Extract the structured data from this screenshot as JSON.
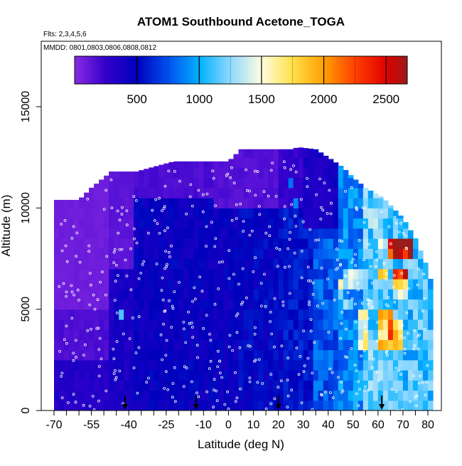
{
  "chart_data": {
    "type": "heatmap",
    "title": "ATOM1 Southbound Acetone_TOGA",
    "subtitle_flights": "Flts: 2,3,4,5,6",
    "subtitle_dates": "MMDD: 0801,0803,0806,0808,0812",
    "xlabel": "Latitude (deg N)",
    "ylabel": "Altitude (m)",
    "xlim": [
      -70,
      82
    ],
    "ylim": [
      0,
      17500
    ],
    "x_ticks": [
      -70,
      -55,
      -40,
      -25,
      -10,
      0,
      10,
      20,
      30,
      40,
      50,
      60,
      70,
      80
    ],
    "x_ticklabels": [
      "-70",
      "-55",
      "-40",
      "-25",
      "-10",
      "0",
      "10",
      "20",
      "30",
      "40",
      "50",
      "60",
      "70",
      "80"
    ],
    "x_minor_step": 5,
    "y_ticks": [
      0,
      5000,
      10000,
      15000
    ],
    "y_ticklabels": [
      "0",
      "5000",
      "10000",
      "15000"
    ],
    "colorbar": {
      "range": [
        0,
        2670
      ],
      "ticks": [
        500,
        1000,
        1500,
        2000,
        2500
      ],
      "ticklabels": [
        "500",
        "1000",
        "1500",
        "2000",
        "2500"
      ],
      "stops": [
        {
          "value": 0,
          "color": "#8a2be2"
        },
        {
          "value": 250,
          "color": "#3300cc"
        },
        {
          "value": 500,
          "color": "#0000bb"
        },
        {
          "value": 750,
          "color": "#0050ee"
        },
        {
          "value": 1000,
          "color": "#00b0ff"
        },
        {
          "value": 1250,
          "color": "#8fd8ff"
        },
        {
          "value": 1500,
          "color": "#fffde0"
        },
        {
          "value": 1750,
          "color": "#ffe04a"
        },
        {
          "value": 2000,
          "color": "#ffa000"
        },
        {
          "value": 2250,
          "color": "#ff4000"
        },
        {
          "value": 2500,
          "color": "#e00000"
        },
        {
          "value": 2670,
          "color": "#9b1a1a"
        }
      ]
    },
    "flight_markers_lat": [
      -41.5,
      -13,
      20,
      61.5
    ],
    "altitude_ceiling_profile": [
      [
        -70,
        10400
      ],
      [
        -60,
        10400
      ],
      [
        -55,
        11000
      ],
      [
        -47,
        11800
      ],
      [
        -37,
        11800
      ],
      [
        -22,
        12300
      ],
      [
        -12,
        12300
      ],
      [
        0,
        12300
      ],
      [
        5,
        12900
      ],
      [
        15,
        12900
      ],
      [
        25,
        12900
      ],
      [
        28,
        13000
      ],
      [
        35,
        12900
      ],
      [
        40,
        12500
      ],
      [
        46,
        12000
      ],
      [
        50,
        11500
      ],
      [
        55,
        11000
      ],
      [
        62,
        10500
      ],
      [
        70,
        9500
      ],
      [
        75,
        8500
      ],
      [
        80,
        7000
      ],
      [
        82,
        6000
      ]
    ],
    "regions": [
      {
        "lat": [
          -70,
          -48
        ],
        "alt": [
          5000,
          13000
        ],
        "value": 80
      },
      {
        "lat": [
          -70,
          -48
        ],
        "alt": [
          2500,
          5000
        ],
        "value": 170
      },
      {
        "lat": [
          -70,
          -48
        ],
        "alt": [
          0,
          2500
        ],
        "value": 330
      },
      {
        "lat": [
          -48,
          -37
        ],
        "alt": [
          7000,
          13000
        ],
        "value": 130
      },
      {
        "lat": [
          -48,
          -37
        ],
        "alt": [
          0,
          7000
        ],
        "value": 380
      },
      {
        "lat": [
          -37,
          -5
        ],
        "alt": [
          10500,
          13000
        ],
        "value": 180
      },
      {
        "lat": [
          -37,
          5
        ],
        "alt": [
          0,
          10500
        ],
        "value": 460
      },
      {
        "lat": [
          -5,
          20
        ],
        "alt": [
          10000,
          13500
        ],
        "value": 160
      },
      {
        "lat": [
          5,
          22
        ],
        "alt": [
          0,
          10000
        ],
        "value": 500
      },
      {
        "lat": [
          20,
          30
        ],
        "alt": [
          10000,
          13500
        ],
        "value": 260
      },
      {
        "lat": [
          22,
          35
        ],
        "alt": [
          0,
          10000
        ],
        "value": 560
      },
      {
        "lat": [
          30,
          42
        ],
        "alt": [
          9000,
          13500
        ],
        "value": 360
      },
      {
        "lat": [
          35,
          45
        ],
        "alt": [
          0,
          9000
        ],
        "value": 760
      },
      {
        "lat": [
          45,
          55
        ],
        "alt": [
          0,
          12500
        ],
        "value": 900
      },
      {
        "lat": [
          55,
          65
        ],
        "alt": [
          0,
          12000
        ],
        "value": 1150
      },
      {
        "lat": [
          65,
          82
        ],
        "alt": [
          0,
          11000
        ],
        "value": 1100
      },
      {
        "lat": [
          -44,
          -42
        ],
        "alt": [
          4400,
          5000
        ],
        "value": 1000
      },
      {
        "lat": [
          26,
          29
        ],
        "alt": [
          10000,
          10400
        ],
        "value": 850
      },
      {
        "lat": [
          24.5,
          26
        ],
        "alt": [
          11000,
          11600
        ],
        "value": 1000
      },
      {
        "lat": [
          47,
          55
        ],
        "alt": [
          6000,
          7000
        ],
        "value": 1400
      },
      {
        "lat": [
          52,
          56
        ],
        "alt": [
          2800,
          5200
        ],
        "value": 1500
      },
      {
        "lat": [
          60,
          64
        ],
        "alt": [
          3000,
          5000
        ],
        "value": 1800
      },
      {
        "lat": [
          64,
          67
        ],
        "alt": [
          3000,
          4800
        ],
        "value": 2100
      },
      {
        "lat": [
          67,
          70
        ],
        "alt": [
          3100,
          4700
        ],
        "value": 1700
      },
      {
        "lat": [
          60,
          64
        ],
        "alt": [
          7700,
          8400
        ],
        "value": 1300
      },
      {
        "lat": [
          64,
          68
        ],
        "alt": [
          7700,
          8400
        ],
        "value": 2450
      },
      {
        "lat": [
          68,
          74
        ],
        "alt": [
          7700,
          8400
        ],
        "value": 2600
      },
      {
        "lat": [
          66,
          70
        ],
        "alt": [
          6500,
          7200
        ],
        "value": 2200
      },
      {
        "lat": [
          70,
          72
        ],
        "alt": [
          6500,
          7200
        ],
        "value": 2500
      },
      {
        "lat": [
          60,
          64
        ],
        "alt": [
          6500,
          7200
        ],
        "value": 1600
      },
      {
        "lat": [
          66,
          73
        ],
        "alt": [
          5300,
          6300
        ],
        "value": 1550
      },
      {
        "lat": [
          57,
          62
        ],
        "alt": [
          9000,
          10000
        ],
        "value": 1350
      },
      {
        "lat": [
          44,
          46
        ],
        "alt": [
          5500,
          6300
        ],
        "value": 1450
      },
      {
        "lat": [
          47,
          51
        ],
        "alt": [
          4800,
          5600
        ],
        "value": 1250
      }
    ]
  }
}
